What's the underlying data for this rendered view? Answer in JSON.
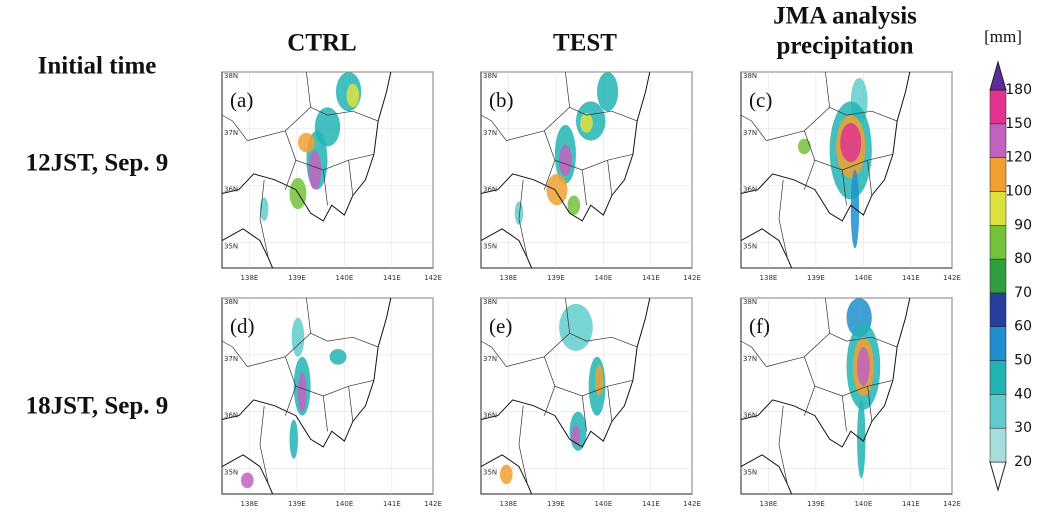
{
  "header": {
    "row_title": "Initial time",
    "columns": [
      {
        "lines": [
          "CTRL"
        ]
      },
      {
        "lines": [
          "TEST"
        ]
      },
      {
        "lines": [
          "JMA analysis",
          "precipitation"
        ]
      }
    ]
  },
  "rows": [
    {
      "label": "12JST, Sep. 9",
      "panels": [
        "(a)",
        "(b)",
        "(c)"
      ]
    },
    {
      "label": "18JST, Sep. 9",
      "panels": [
        "(d)",
        "(e)",
        "(f)"
      ]
    }
  ],
  "map_axes": {
    "lat_labels": [
      "35N",
      "36N",
      "37N",
      "38N"
    ],
    "lon_labels": [
      "138E",
      "139E",
      "140E",
      "141E",
      "142E"
    ]
  },
  "colorbar": {
    "unit": "[mm]",
    "levels": [
      20,
      30,
      40,
      50,
      60,
      70,
      80,
      90,
      100,
      120,
      150,
      180
    ],
    "colors": [
      "#a6dede",
      "#62cccc",
      "#22b4b4",
      "#1f8fcf",
      "#24409c",
      "#2f9e3e",
      "#74c23c",
      "#dde03e",
      "#f0a030",
      "#c262c0",
      "#e2348e"
    ],
    "under_color": "#ffffff",
    "over_color": "#5c2c9c"
  }
}
